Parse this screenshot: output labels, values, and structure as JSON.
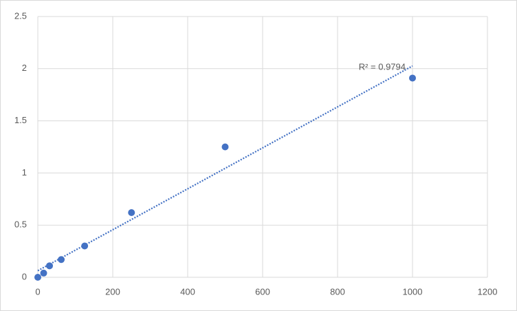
{
  "chart_data": {
    "type": "scatter",
    "x": [
      0,
      15.6,
      31.25,
      62.5,
      125,
      250,
      500,
      1000
    ],
    "values": [
      0,
      0.04,
      0.11,
      0.17,
      0.3,
      0.62,
      1.25,
      1.91
    ],
    "color": "#4472c4",
    "xlim": [
      0,
      1200
    ],
    "xticks": [
      0,
      200,
      400,
      600,
      800,
      1000,
      1200
    ],
    "ylim": [
      0,
      2.5
    ],
    "yticks": [
      0,
      0.5,
      1,
      1.5,
      2,
      2.5
    ],
    "grid": true,
    "trendline": "linear",
    "annotation": "R² = 0.9794"
  }
}
